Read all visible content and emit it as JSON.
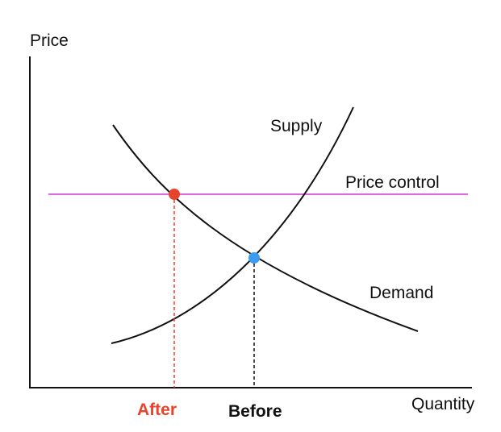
{
  "axes": {
    "y_label": "Price",
    "x_label": "Quantity"
  },
  "curves": {
    "supply": "Supply",
    "demand": "Demand",
    "price_control": "Price control"
  },
  "markers": {
    "after": "After",
    "before": "Before"
  }
}
